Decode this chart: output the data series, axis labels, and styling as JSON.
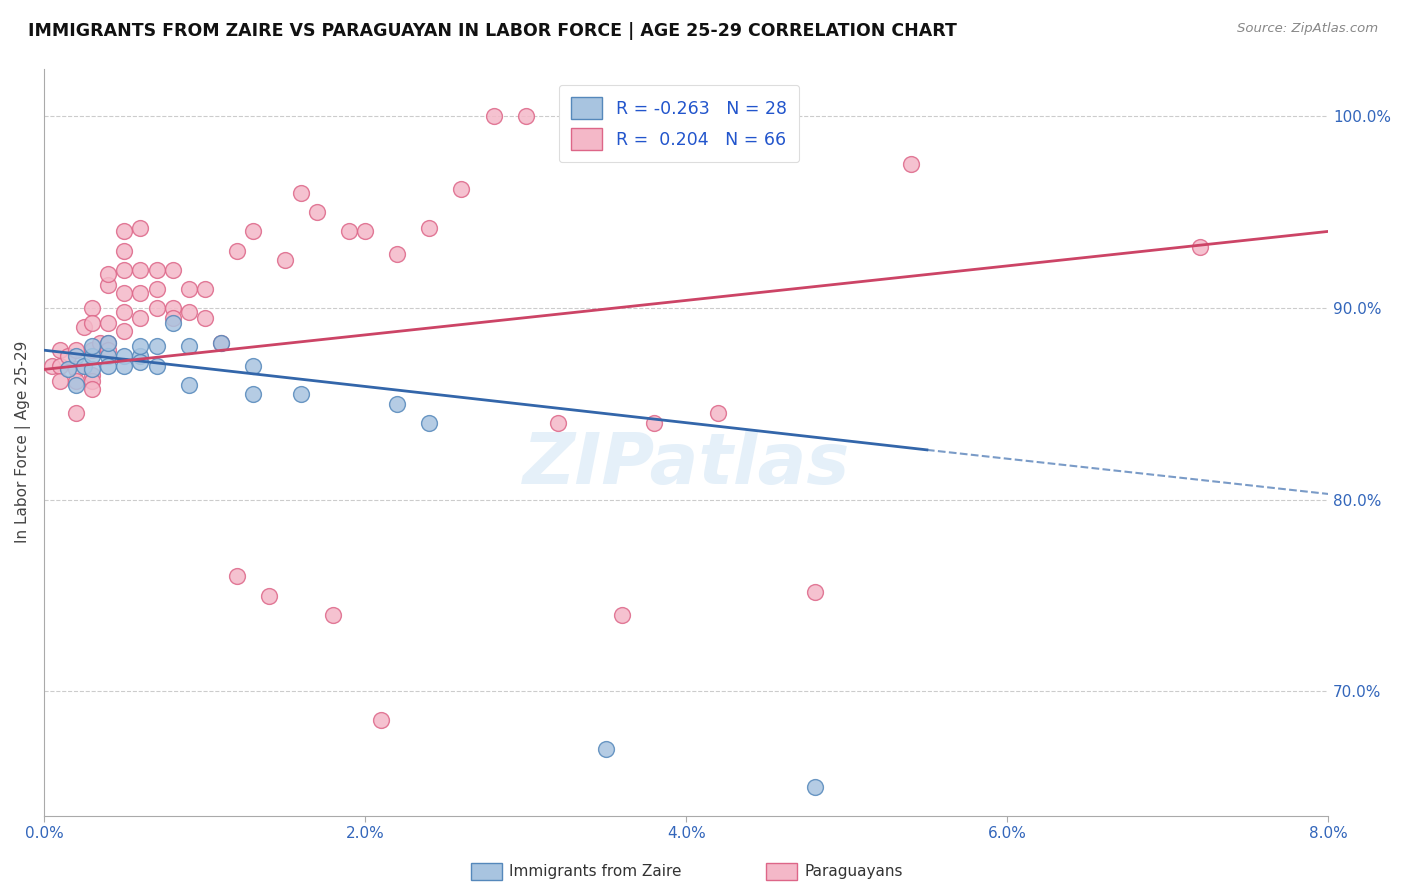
{
  "title": "IMMIGRANTS FROM ZAIRE VS PARAGUAYAN IN LABOR FORCE | AGE 25-29 CORRELATION CHART",
  "source": "Source: ZipAtlas.com",
  "ylabel": "In Labor Force | Age 25-29",
  "xlim": [
    0.0,
    0.08
  ],
  "ylim": [
    0.635,
    1.025
  ],
  "xtick_vals": [
    0.0,
    0.02,
    0.04,
    0.06,
    0.08
  ],
  "xtick_labels": [
    "0.0%",
    "2.0%",
    "4.0%",
    "6.0%",
    "8.0%"
  ],
  "ytick_vals": [
    0.7,
    0.8,
    0.9,
    1.0
  ],
  "ytick_labels_right": [
    "70.0%",
    "80.0%",
    "90.0%",
    "100.0%"
  ],
  "blue_R": "-0.263",
  "blue_N": "28",
  "pink_R": "0.204",
  "pink_N": "66",
  "blue_color": "#a8c4e0",
  "pink_color": "#f4b8c8",
  "blue_edge_color": "#5588bb",
  "pink_edge_color": "#dd6688",
  "blue_line_color": "#3366aa",
  "pink_line_color": "#cc4466",
  "legend_label_blue": "Immigrants from Zaire",
  "legend_label_pink": "Paraguayans",
  "watermark": "ZIPatlas",
  "blue_line_x0": 0.0,
  "blue_line_y0": 0.878,
  "blue_line_x1": 0.055,
  "blue_line_y1": 0.826,
  "blue_line_xdash_x0": 0.055,
  "blue_line_xdash_y0": 0.826,
  "blue_line_xdash_x1": 0.08,
  "blue_line_xdash_y1": 0.803,
  "pink_line_x0": 0.0,
  "pink_line_y0": 0.868,
  "pink_line_x1": 0.08,
  "pink_line_y1": 0.94,
  "blue_scatter_x": [
    0.0015,
    0.002,
    0.002,
    0.0025,
    0.003,
    0.003,
    0.003,
    0.004,
    0.004,
    0.004,
    0.005,
    0.005,
    0.006,
    0.006,
    0.006,
    0.007,
    0.007,
    0.008,
    0.009,
    0.009,
    0.011,
    0.013,
    0.013,
    0.016,
    0.022,
    0.024,
    0.035,
    0.048
  ],
  "blue_scatter_y": [
    0.868,
    0.86,
    0.875,
    0.87,
    0.868,
    0.875,
    0.88,
    0.875,
    0.87,
    0.882,
    0.875,
    0.87,
    0.875,
    0.872,
    0.88,
    0.87,
    0.88,
    0.892,
    0.86,
    0.88,
    0.882,
    0.855,
    0.87,
    0.855,
    0.85,
    0.84,
    0.67,
    0.65
  ],
  "pink_scatter_x": [
    0.0005,
    0.001,
    0.001,
    0.001,
    0.0015,
    0.002,
    0.002,
    0.002,
    0.002,
    0.0025,
    0.003,
    0.003,
    0.003,
    0.003,
    0.003,
    0.003,
    0.0035,
    0.004,
    0.004,
    0.004,
    0.004,
    0.004,
    0.005,
    0.005,
    0.005,
    0.005,
    0.005,
    0.005,
    0.006,
    0.006,
    0.006,
    0.006,
    0.007,
    0.007,
    0.007,
    0.008,
    0.008,
    0.008,
    0.009,
    0.009,
    0.01,
    0.01,
    0.011,
    0.012,
    0.012,
    0.013,
    0.014,
    0.015,
    0.016,
    0.017,
    0.018,
    0.019,
    0.02,
    0.021,
    0.022,
    0.024,
    0.026,
    0.028,
    0.03,
    0.032,
    0.036,
    0.038,
    0.042,
    0.048,
    0.054,
    0.072
  ],
  "pink_scatter_y": [
    0.87,
    0.87,
    0.878,
    0.862,
    0.875,
    0.878,
    0.868,
    0.862,
    0.845,
    0.89,
    0.9,
    0.892,
    0.878,
    0.865,
    0.862,
    0.858,
    0.882,
    0.892,
    0.882,
    0.878,
    0.912,
    0.918,
    0.93,
    0.92,
    0.908,
    0.898,
    0.888,
    0.94,
    0.942,
    0.92,
    0.908,
    0.895,
    0.92,
    0.91,
    0.9,
    0.92,
    0.9,
    0.895,
    0.91,
    0.898,
    0.91,
    0.895,
    0.882,
    0.93,
    0.76,
    0.94,
    0.75,
    0.925,
    0.96,
    0.95,
    0.74,
    0.94,
    0.94,
    0.685,
    0.928,
    0.942,
    0.962,
    1.0,
    1.0,
    0.84,
    0.74,
    0.84,
    0.845,
    0.752,
    0.975,
    0.932
  ]
}
